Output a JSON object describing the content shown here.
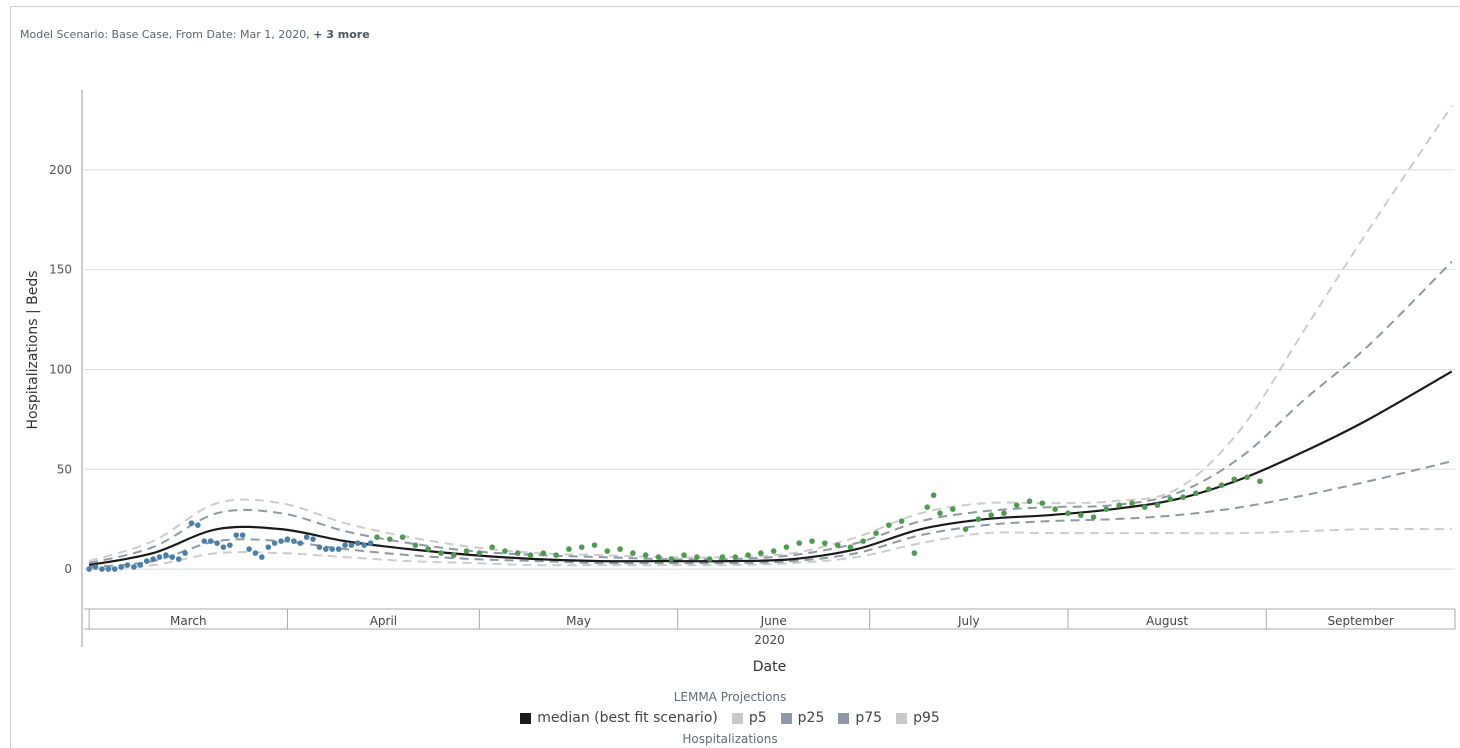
{
  "filter": {
    "prefix": "Model Scenario: Base Case, From Date: Mar 1, 2020, ",
    "more": "+ 3 more"
  },
  "legend": {
    "title": "LEMMA Projections",
    "subtitle": "Hospitalizations",
    "items": [
      {
        "label": "median (best fit scenario)",
        "color": "#1a1a1a"
      },
      {
        "label": "p5",
        "color": "#c9c9c9"
      },
      {
        "label": "p25",
        "color": "#8c99a6"
      },
      {
        "label": "p75",
        "color": "#8c99a6"
      },
      {
        "label": "p95",
        "color": "#c9c9c9"
      }
    ]
  },
  "colors": {
    "median": "#1a1a1a",
    "p5": "#cccccc",
    "p25": "#8c99a6",
    "p75": "#8c99a6",
    "p95": "#cccccc",
    "observed_early": "#4a7fa8",
    "observed_late": "#4f9a4f",
    "grid": "#d8dee4"
  },
  "chart_data": {
    "type": "line",
    "xlabel": "Date",
    "ylabel": "Hospitalizations | Beds",
    "x_year_label": "2020",
    "months": [
      "March",
      "April",
      "May",
      "June",
      "July",
      "August",
      "September"
    ],
    "yticks": [
      0,
      50,
      100,
      150,
      200
    ],
    "ylim": [
      -19,
      240
    ],
    "xlim_days": [
      -0.8,
      213.5
    ],
    "x_origin": "2020-03-01",
    "grid": true,
    "legend_position": "bottom",
    "series": [
      {
        "name": "median (best fit scenario)",
        "style": "solid",
        "x": [
          0,
          10,
          20,
          30,
          40,
          50,
          60,
          70,
          80,
          90,
          100,
          110,
          120,
          130,
          140,
          150,
          160,
          170,
          180,
          190,
          200,
          213
        ],
        "y": [
          2,
          8,
          20,
          20,
          14,
          10,
          7,
          5,
          4,
          4,
          4,
          5,
          10,
          20,
          25,
          27,
          30,
          35,
          45,
          59,
          75,
          99
        ]
      },
      {
        "name": "p5",
        "style": "dashed",
        "x": [
          0,
          10,
          20,
          30,
          40,
          50,
          60,
          70,
          80,
          90,
          100,
          110,
          120,
          130,
          140,
          150,
          160,
          170,
          180,
          190,
          200,
          213
        ],
        "y": [
          0,
          2,
          8,
          8,
          6,
          4,
          3,
          2,
          2,
          2,
          2,
          3,
          6,
          13,
          18,
          18,
          18,
          18,
          18,
          19,
          20,
          20
        ]
      },
      {
        "name": "p25",
        "style": "dashed",
        "x": [
          0,
          10,
          20,
          30,
          40,
          50,
          60,
          70,
          80,
          90,
          100,
          110,
          120,
          130,
          140,
          150,
          160,
          170,
          180,
          190,
          200,
          213
        ],
        "y": [
          1,
          4,
          14,
          14,
          10,
          7,
          5,
          4,
          3,
          3,
          3,
          4,
          8,
          17,
          22,
          24,
          25,
          27,
          31,
          37,
          44,
          54
        ]
      },
      {
        "name": "p75",
        "style": "dashed",
        "x": [
          0,
          10,
          20,
          30,
          40,
          50,
          60,
          70,
          80,
          90,
          100,
          110,
          120,
          130,
          140,
          150,
          160,
          170,
          180,
          190,
          200,
          213
        ],
        "y": [
          3,
          11,
          28,
          28,
          19,
          13,
          9,
          7,
          6,
          5,
          5,
          7,
          13,
          24,
          29,
          31,
          32,
          38,
          56,
          85,
          112,
          154
        ]
      },
      {
        "name": "p95",
        "style": "dashed",
        "x": [
          0,
          10,
          20,
          30,
          40,
          50,
          60,
          70,
          80,
          90,
          100,
          110,
          120,
          130,
          140,
          150,
          160,
          170,
          180,
          190,
          200,
          213
        ],
        "y": [
          4,
          14,
          33,
          33,
          23,
          16,
          11,
          8,
          7,
          6,
          6,
          8,
          16,
          28,
          33,
          33,
          34,
          40,
          70,
          120,
          170,
          232
        ]
      }
    ],
    "observed": [
      {
        "group": "early",
        "x": [
          0,
          1,
          2,
          3,
          4,
          5,
          6,
          7,
          8,
          9,
          10,
          11,
          12,
          13,
          14,
          15,
          16,
          17,
          18,
          19,
          20,
          21,
          22,
          23,
          24,
          25,
          26,
          27,
          28,
          29,
          30,
          31,
          32,
          33,
          34,
          35,
          36,
          37,
          38,
          39,
          40,
          41,
          42,
          43,
          44
        ],
        "y": [
          0,
          1,
          0,
          0,
          0,
          1,
          2,
          1,
          2,
          4,
          5,
          6,
          7,
          6,
          5,
          8,
          23,
          22,
          14,
          14,
          13,
          11,
          12,
          17,
          17,
          10,
          8,
          6,
          11,
          13,
          14,
          15,
          14,
          13,
          16,
          15,
          11,
          10,
          10,
          10,
          12,
          12,
          13,
          12,
          13
        ]
      },
      {
        "group": "late",
        "x": [
          45,
          47,
          49,
          51,
          53,
          55,
          57,
          59,
          61,
          63,
          65,
          67,
          69,
          71,
          73,
          75,
          77,
          79,
          81,
          83,
          85,
          87,
          89,
          91,
          93,
          95,
          97,
          99,
          101,
          103,
          105,
          107,
          109,
          111,
          113,
          115,
          117,
          119,
          121,
          123,
          125,
          127,
          129,
          131,
          132,
          133,
          135,
          137,
          139,
          141,
          143,
          145,
          147,
          149,
          151,
          153,
          155,
          157,
          159,
          161,
          163,
          165,
          167,
          169,
          171,
          173,
          175,
          177,
          179,
          181,
          183
        ],
        "y": [
          16,
          15,
          16,
          12,
          10,
          8,
          7,
          9,
          8,
          11,
          9,
          8,
          7,
          8,
          7,
          10,
          11,
          12,
          9,
          10,
          8,
          7,
          6,
          5,
          7,
          6,
          5,
          6,
          6,
          7,
          8,
          9,
          11,
          13,
          14,
          13,
          12,
          11,
          14,
          18,
          22,
          24,
          8,
          31,
          37,
          28,
          30,
          20,
          25,
          27,
          28,
          32,
          34,
          33,
          30,
          28,
          27,
          26,
          30,
          32,
          33,
          31,
          32,
          35,
          36,
          38,
          40,
          42,
          45,
          46,
          44
        ]
      }
    ]
  }
}
